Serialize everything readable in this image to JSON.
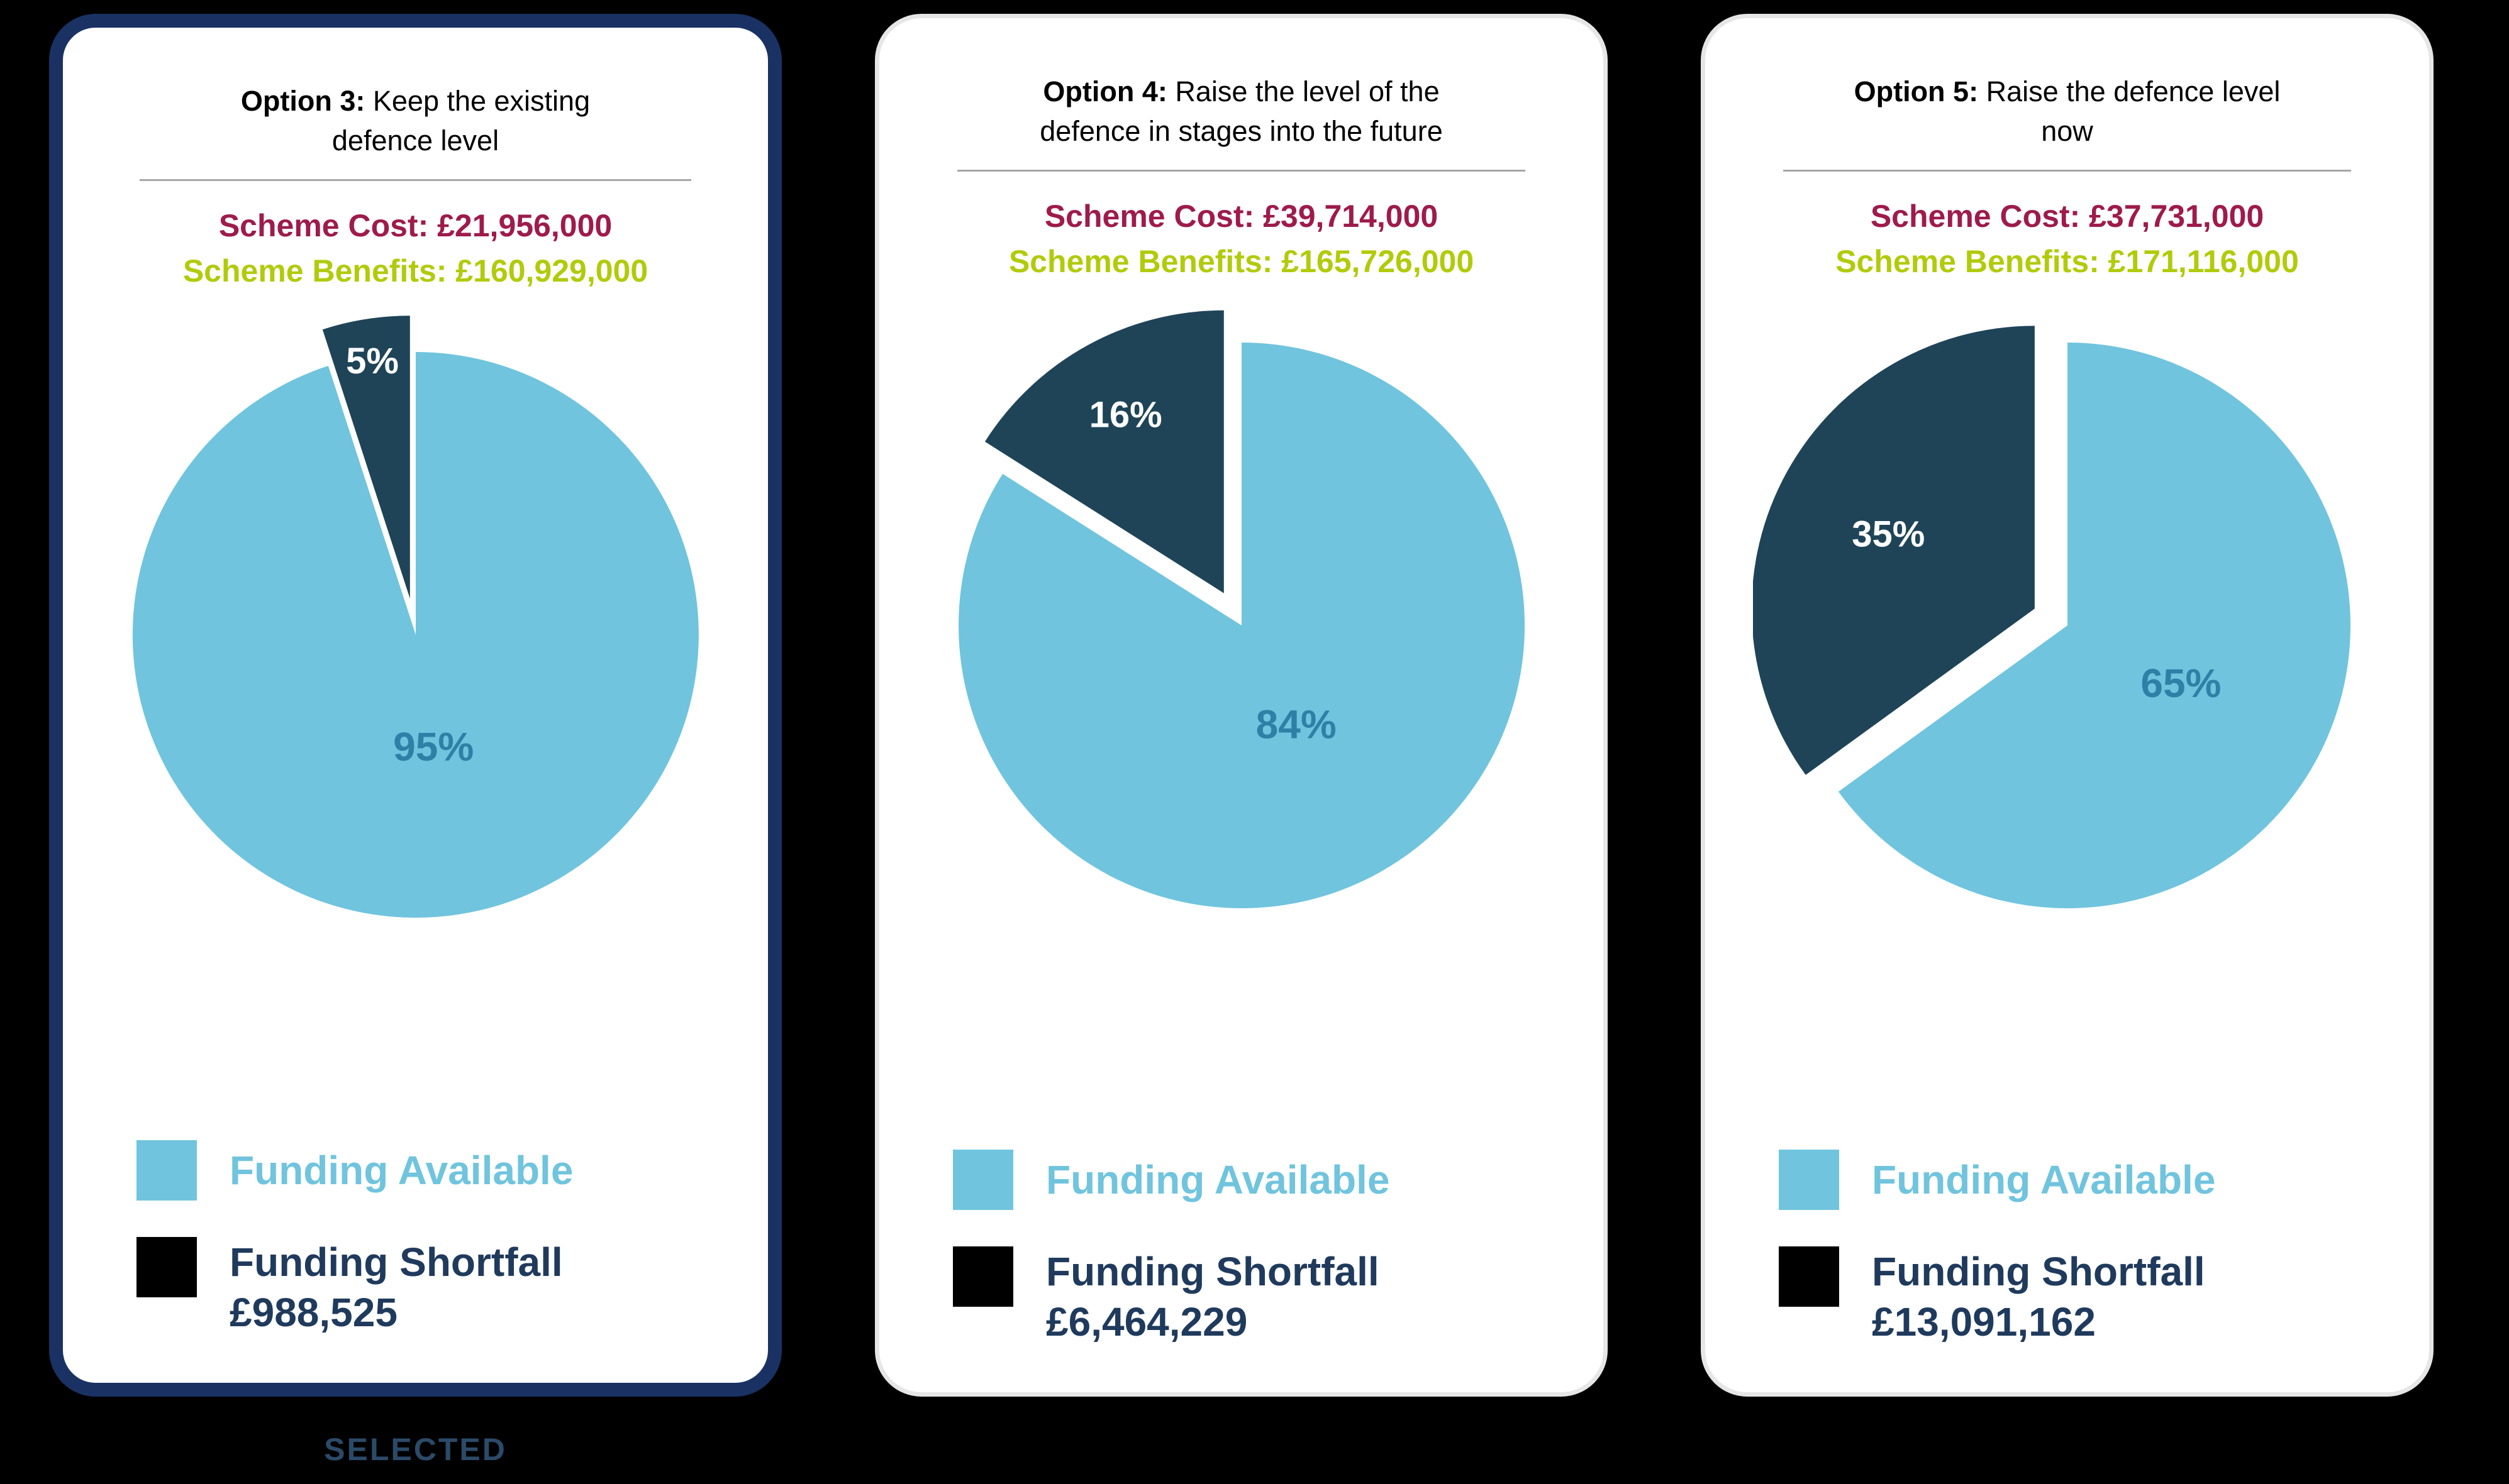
{
  "page": {
    "background": "#000000",
    "selected_caption": "SELECTED"
  },
  "colors": {
    "card_bg": "#ffffff",
    "card_border": "#e6e6e6",
    "selected_border": "#1a3263",
    "divider": "#a6a6a6",
    "cost_text": "#9e1b4b",
    "benefit_text": "#b1cb0c",
    "available_fill": "#70c4de",
    "shortfall_fill": "#1f4458",
    "available_pct_text": "#2e80a6",
    "shortfall_pct_text": "#ffffff",
    "legend_available_text": "#70c4de",
    "legend_shortfall_text": "#1f3a5c",
    "legend_shortfall_swatch": "#000000",
    "selected_caption_text": "#2b4a68"
  },
  "cards": [
    {
      "option_label": "Option 3:",
      "option_desc": "Keep the existing defence level",
      "scheme_cost": "Scheme Cost: £21,956,000",
      "scheme_benefits": "Scheme Benefits: £160,929,000",
      "selected": true,
      "legend": {
        "available_label": "Funding Available",
        "shortfall_label": "Funding Shortfall",
        "shortfall_amount": "£988,525"
      }
    },
    {
      "option_label": "Option 4:",
      "option_desc": "Raise the level of the defence in stages into the future",
      "scheme_cost": "Scheme Cost: £39,714,000",
      "scheme_benefits": "Scheme Benefits: £165,726,000",
      "selected": false,
      "legend": {
        "available_label": "Funding Available",
        "shortfall_label": "Funding Shortfall",
        "shortfall_amount": "£6,464,229"
      }
    },
    {
      "option_label": "Option 5:",
      "option_desc": "Raise the defence level now",
      "scheme_cost": "Scheme Cost: £37,731,000",
      "scheme_benefits": "Scheme Benefits: £171,116,000",
      "selected": false,
      "legend": {
        "available_label": "Funding Available",
        "shortfall_label": "Funding Shortfall",
        "shortfall_amount": "£13,091,162"
      }
    }
  ],
  "chart_data": [
    {
      "type": "pie",
      "title": "Option 3: Keep the existing defence level",
      "labels": [
        "Funding Available",
        "Funding Shortfall"
      ],
      "values_pct": [
        95,
        5
      ],
      "data_labels": [
        "95%",
        "5%"
      ],
      "scheme_cost_gbp": 21956000,
      "scheme_benefits_gbp": 160929000,
      "funding_shortfall_gbp_text": "£988,525",
      "start_angle_deg": 0,
      "direction": "clockwise",
      "exploded_slice": "Funding Shortfall",
      "legend_position": "bottom-left",
      "layout": {
        "available_label_r": 0.4,
        "shortfall_label_r": 0.85,
        "explode": 0.13
      }
    },
    {
      "type": "pie",
      "title": "Option 4: Raise the level of the defence in stages into the future",
      "labels": [
        "Funding Available",
        "Funding Shortfall"
      ],
      "values_pct": [
        84,
        16
      ],
      "data_labels": [
        "84%",
        "16%"
      ],
      "scheme_cost_gbp": 39714000,
      "scheme_benefits_gbp": 165726000,
      "funding_shortfall_gbp_text": "£6,464,229",
      "start_angle_deg": 0,
      "direction": "clockwise",
      "exploded_slice": "Funding Shortfall",
      "legend_position": "bottom-left",
      "layout": {
        "available_label_r": 0.4,
        "shortfall_label_r": 0.72,
        "explode": 0.13
      }
    },
    {
      "type": "pie",
      "title": "Option 5: Raise the defence level now",
      "labels": [
        "Funding Available",
        "Funding Shortfall"
      ],
      "values_pct": [
        65,
        35
      ],
      "data_labels": [
        "65%",
        "35%"
      ],
      "scheme_cost_gbp": 37731000,
      "scheme_benefits_gbp": 171116000,
      "funding_shortfall_gbp_text": "£13,091,162",
      "start_angle_deg": 0,
      "direction": "clockwise",
      "exploded_slice": "Funding Shortfall",
      "legend_position": "bottom-left",
      "layout": {
        "available_label_r": 0.45,
        "shortfall_label_r": 0.58,
        "explode": 0.13
      }
    }
  ]
}
